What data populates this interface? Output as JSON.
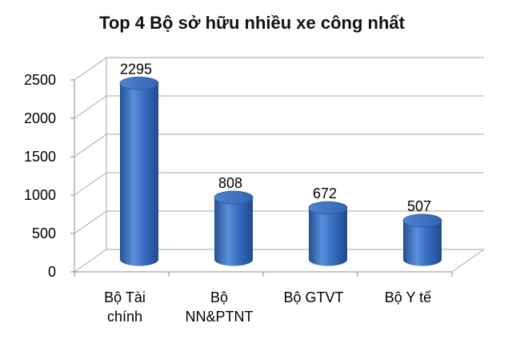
{
  "chart_data": {
    "type": "bar",
    "style": "3d-cylinder",
    "title": "Top 4 Bộ sở hữu nhiều xe công nhất",
    "categories": [
      [
        "Bộ Tài",
        "chính"
      ],
      [
        "Bộ",
        "NN&PTNT"
      ],
      [
        "Bộ GTVT"
      ],
      [
        "Bộ Y tế"
      ]
    ],
    "values": [
      2295,
      808,
      672,
      507
    ],
    "data_labels": [
      "2295",
      "808",
      "672",
      "507"
    ],
    "ylim": [
      0,
      2500
    ],
    "yticks": [
      0,
      500,
      1000,
      1500,
      2000,
      2500
    ],
    "ytick_labels": [
      "0",
      "500",
      "1000",
      "1500",
      "2000",
      "2500"
    ],
    "grid": true,
    "legend": "none",
    "colors": {
      "bar": "#3a6fc2",
      "bar_dark": "#1f4a8f",
      "bar_light": "#6f9be0",
      "grid": "#a6a6a6"
    }
  }
}
